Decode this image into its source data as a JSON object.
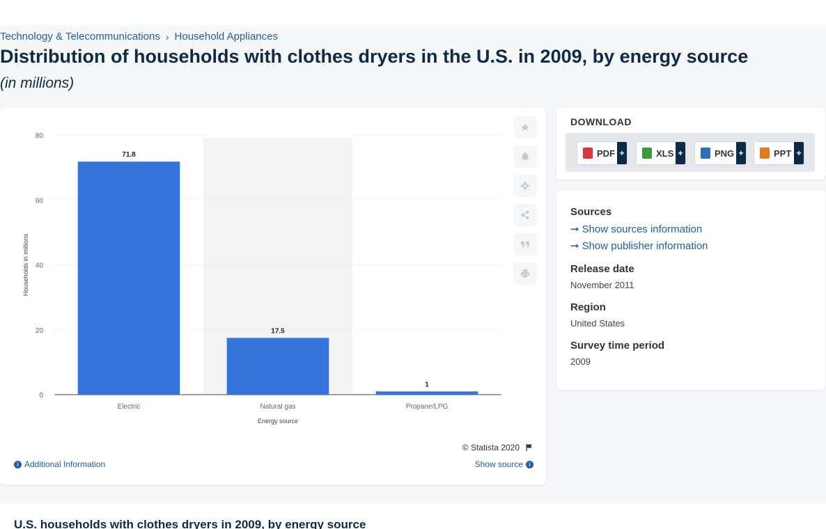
{
  "breadcrumb": {
    "items": [
      "Technology & Telecommunications",
      "Household Appliances"
    ],
    "separator": "›"
  },
  "page": {
    "title": "Distribution of households with clothes dryers in the U.S. in 2009, by energy source",
    "subtitle": "(in millions)"
  },
  "chart_data": {
    "type": "bar",
    "categories": [
      "Electric",
      "Natural gas",
      "Propane/LPG"
    ],
    "values": [
      71.8,
      17.5,
      1
    ],
    "data_labels": [
      "71.8",
      "17.5",
      "1"
    ],
    "xlabel": "Energy source",
    "ylabel": "Households in millions",
    "ylim": [
      0,
      80
    ],
    "yticks": [
      0,
      20,
      40,
      60,
      80
    ],
    "bar_color": "#3474db",
    "highlight_category": "Natural gas",
    "grid": true,
    "legend": "none"
  },
  "chart_card": {
    "credit": "© Statista 2020",
    "additional_info": "Additional Information",
    "show_source": "Show source",
    "tools": [
      "star-icon",
      "bell-icon",
      "gear-icon",
      "share-icon",
      "quote-icon",
      "print-icon"
    ]
  },
  "download": {
    "heading": "DOWNLOAD",
    "buttons": [
      {
        "label": "PDF",
        "icon": "pdf-file-icon",
        "color": "#d9363e"
      },
      {
        "label": "XLS",
        "icon": "xls-file-icon",
        "color": "#3a9a3a"
      },
      {
        "label": "PNG",
        "icon": "png-file-icon",
        "color": "#2f6fb5"
      },
      {
        "label": "PPT",
        "icon": "ppt-file-icon",
        "color": "#e07b1f"
      }
    ],
    "plus": "+"
  },
  "meta": {
    "sources_label": "Sources",
    "show_sources": "Show sources information",
    "show_publisher": "Show publisher information",
    "release_date_label": "Release date",
    "release_date": "November 2011",
    "region_label": "Region",
    "region": "United States",
    "survey_label": "Survey time period",
    "survey": "2009"
  },
  "bottom": {
    "title": "U.S. households with clothes dryers in 2009, by energy source"
  },
  "colors": {
    "accent": "#1f5fa8",
    "navy": "#0f2a46"
  }
}
